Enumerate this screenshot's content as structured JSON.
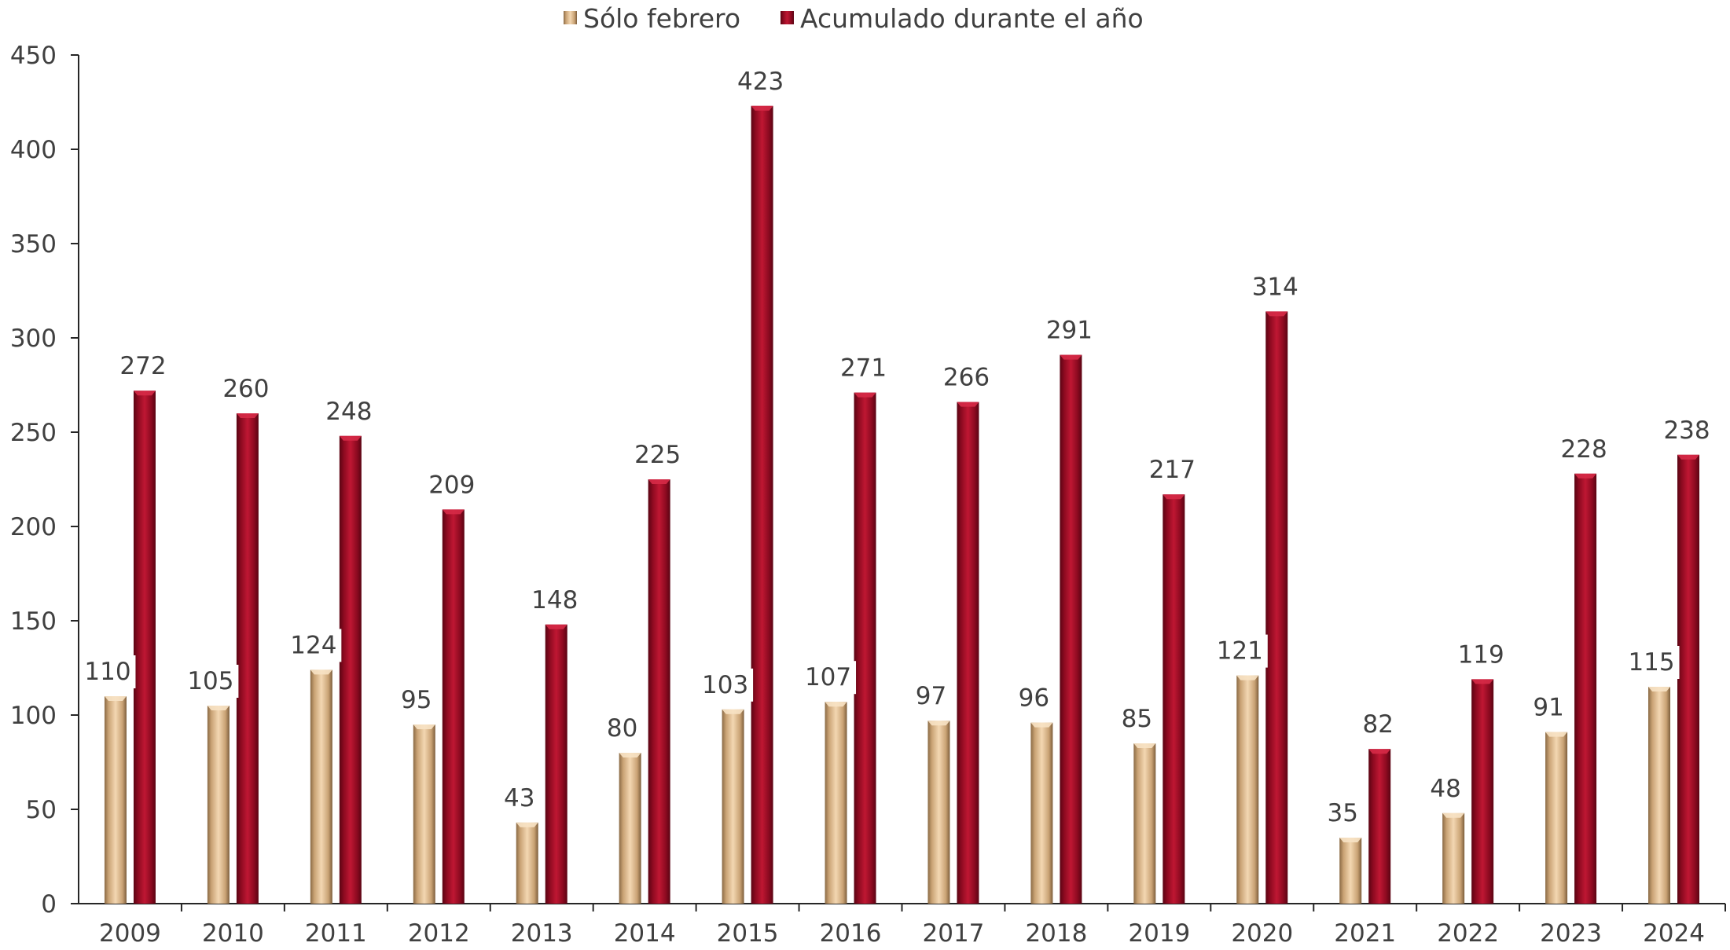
{
  "chart_data": {
    "type": "bar",
    "categories": [
      "2009",
      "2010",
      "2011",
      "2012",
      "2013",
      "2014",
      "2015",
      "2016",
      "2017",
      "2018",
      "2019",
      "2020",
      "2021",
      "2022",
      "2023",
      "2024"
    ],
    "series": [
      {
        "name": "Sólo febrero",
        "color": "#d9b48a",
        "values": [
          110,
          105,
          124,
          95,
          43,
          80,
          103,
          107,
          97,
          96,
          85,
          121,
          35,
          48,
          91,
          115
        ]
      },
      {
        "name": "Acumulado durante el año",
        "color": "#a30f27",
        "values": [
          272,
          260,
          248,
          209,
          148,
          225,
          423,
          271,
          266,
          291,
          217,
          314,
          82,
          119,
          228,
          238
        ]
      }
    ],
    "ylim": [
      0,
      450
    ],
    "yticks": [
      0,
      50,
      100,
      150,
      200,
      250,
      300,
      350,
      400,
      450
    ],
    "grid": false,
    "legend_position": "top-center",
    "data_labels": true
  }
}
